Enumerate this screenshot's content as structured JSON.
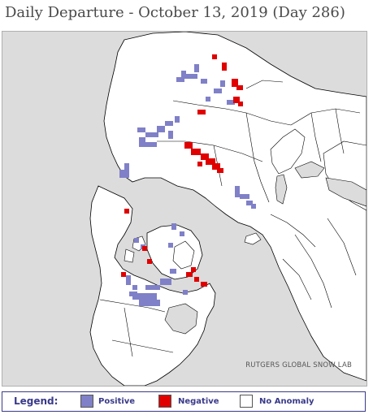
{
  "title": "Daily Departure - October 13, 2019 (Day 286)",
  "map": {
    "credit": "RUTGERS GLOBAL SNOW LAB",
    "colors": {
      "ocean": "#dcdcdc",
      "land": "#ffffff",
      "border": "#000000",
      "positive": "#8080c8",
      "negative": "#e00000"
    }
  },
  "legend": {
    "title": "Legend:",
    "items": [
      {
        "label": "Positive",
        "color": "#8080c8"
      },
      {
        "label": "Negative",
        "color": "#e00000"
      },
      {
        "label": "No Anomaly",
        "color": "#ffffff"
      }
    ]
  }
}
